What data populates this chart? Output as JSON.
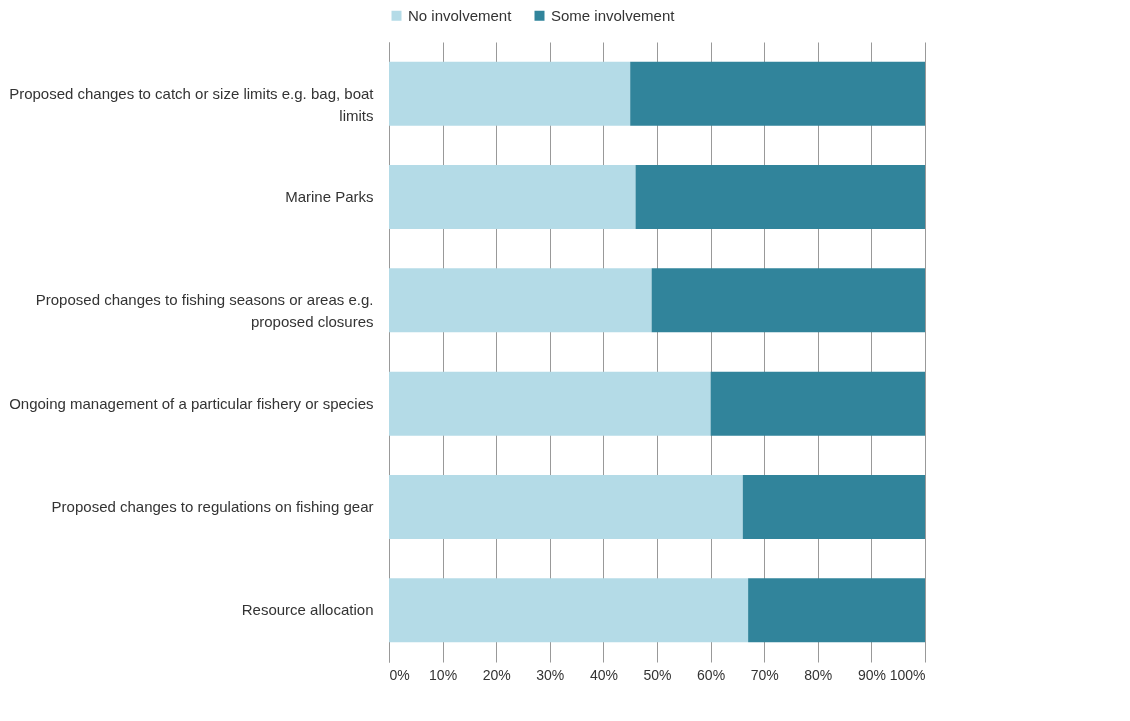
{
  "chart_data": {
    "type": "bar",
    "orientation": "horizontal",
    "stacked": true,
    "categories": [
      "Proposed changes to catch or size limits e.g. bag, boat limits",
      "Marine Parks",
      "Proposed changes to fishing seasons or areas e.g. proposed closures",
      "Ongoing management of a particular fishery or species",
      "Proposed changes to regulations on fishing gear",
      "Resource allocation"
    ],
    "series": [
      {
        "name": "No involvement",
        "color": "#b4dbe7",
        "values": [
          45,
          46,
          49,
          60,
          66,
          67
        ]
      },
      {
        "name": "Some involvement",
        "color": "#31849b",
        "values": [
          55,
          54,
          51,
          40,
          34,
          33
        ]
      }
    ],
    "xlim": [
      0,
      100
    ],
    "xticks": [
      {
        "value": 0,
        "label": "0%"
      },
      {
        "value": 10,
        "label": "10%"
      },
      {
        "value": 20,
        "label": "20%"
      },
      {
        "value": 30,
        "label": "30%"
      },
      {
        "value": 40,
        "label": "40%"
      },
      {
        "value": 50,
        "label": "50%"
      },
      {
        "value": 60,
        "label": "60%"
      },
      {
        "value": 70,
        "label": "70%"
      },
      {
        "value": 80,
        "label": "80%"
      },
      {
        "value": 90,
        "label": "90%"
      },
      {
        "value": 100,
        "label": "100%"
      }
    ],
    "grid": "x",
    "legend": "top"
  }
}
